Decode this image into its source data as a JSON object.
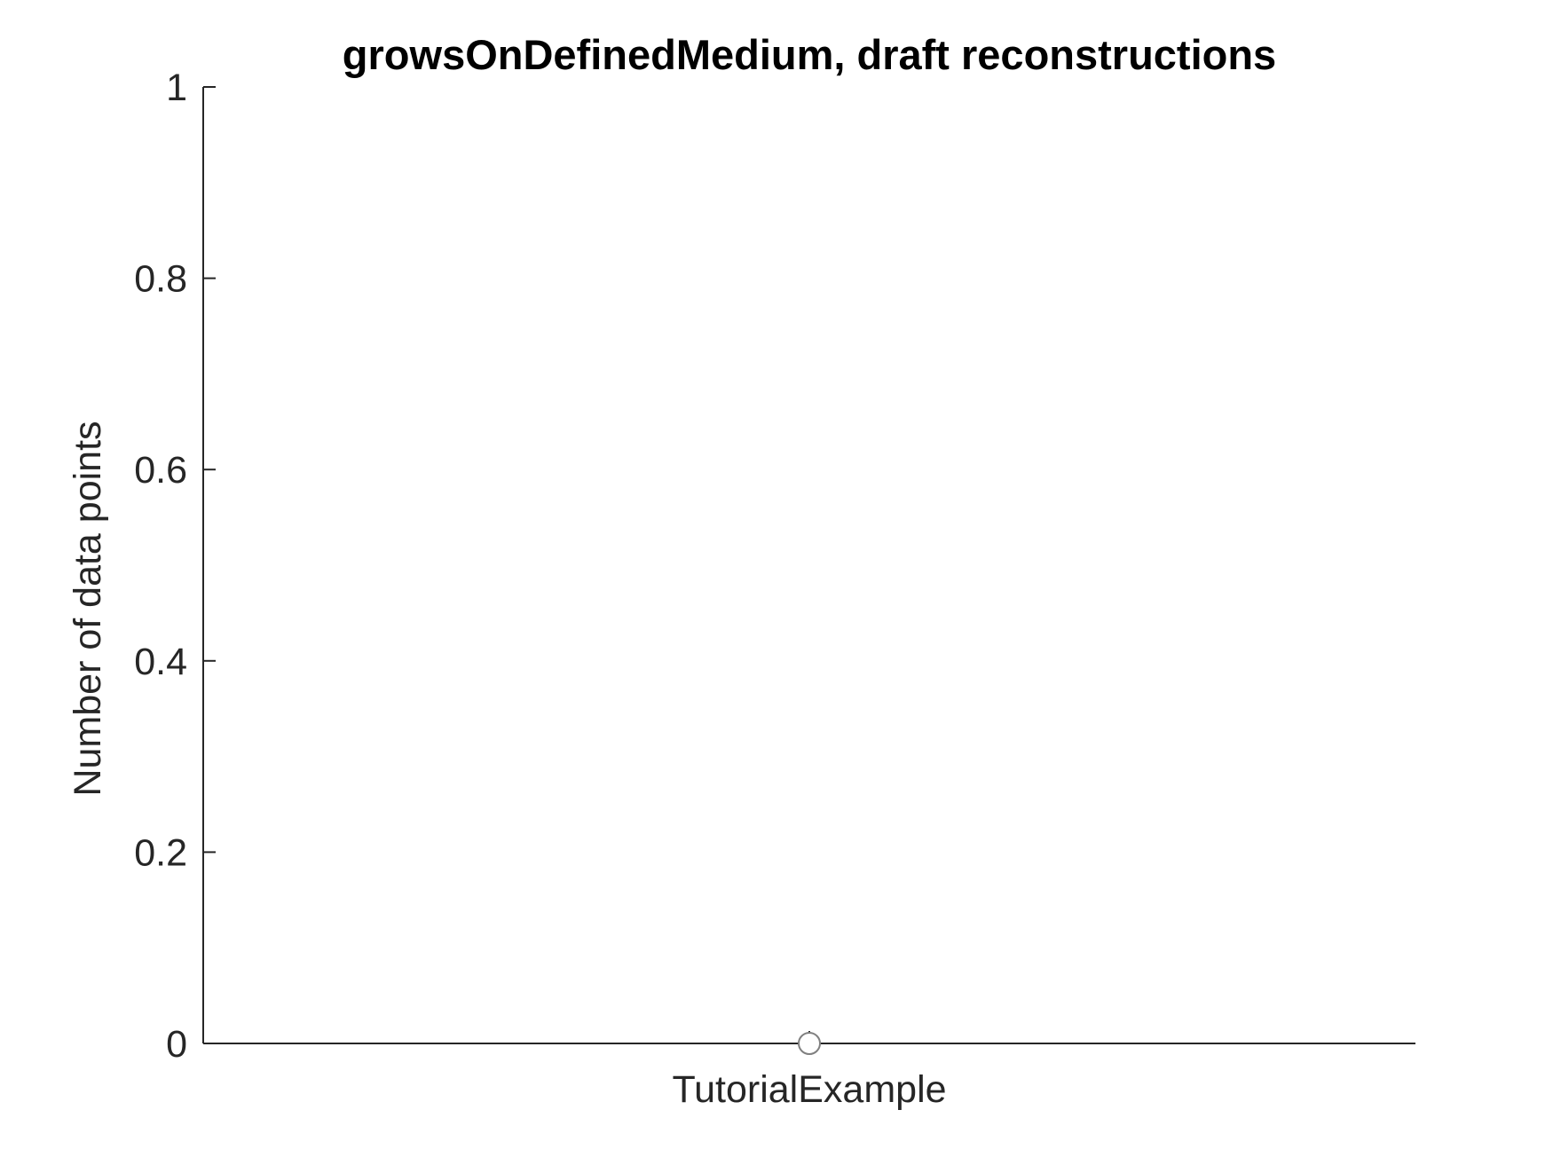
{
  "chart_data": {
    "type": "scatter",
    "title": "growsOnDefinedMedium, draft reconstructions",
    "xlabel": "",
    "ylabel": "Number of data points",
    "categories": [
      "TutorialExample"
    ],
    "values": [
      0
    ],
    "ylim": [
      0,
      1
    ],
    "yticks": [
      0,
      0.2,
      0.4,
      0.6,
      0.8,
      1
    ],
    "ytick_labels": [
      "0",
      "0.2",
      "0.4",
      "0.6",
      "0.8",
      "1"
    ],
    "grid": false,
    "marker": "open-circle",
    "colors": {
      "axis": "#262626",
      "marker_edge": "#808080",
      "marker_fill": "#ffffff"
    }
  }
}
